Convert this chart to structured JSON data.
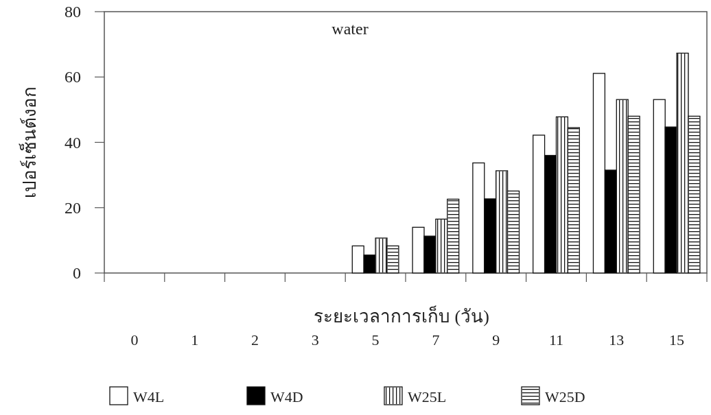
{
  "chart_data": {
    "type": "bar",
    "xlabel": "ระยะเวลาการเก็บ (วัน)",
    "ylabel": "เปอร์เซ็นต์งอก",
    "annotations": [
      "water"
    ],
    "categories": [
      "0",
      "1",
      "2",
      "3",
      "5",
      "7",
      "9",
      "11",
      "13",
      "15"
    ],
    "series": [
      {
        "name": "W4L",
        "color": "#ffffff",
        "values": [
          0,
          0,
          0,
          0,
          8.3,
          14.0,
          33.7,
          42.2,
          61.1,
          53.1
        ]
      },
      {
        "name": "W4D",
        "color": "#000000",
        "values": [
          0,
          0,
          0,
          0,
          5.5,
          11.3,
          22.7,
          36.0,
          31.5,
          44.7
        ]
      },
      {
        "name": "W25L",
        "color": "#ffffff",
        "values": [
          0,
          0,
          0,
          0,
          10.7,
          16.5,
          31.3,
          47.8,
          53.1,
          67.3
        ]
      },
      {
        "name": "W25D",
        "color": "#ffffff",
        "values": [
          0,
          0,
          0,
          0,
          8.3,
          22.6,
          25.1,
          44.5,
          48.0,
          48.0
        ]
      }
    ],
    "ylim": [
      0,
      80
    ],
    "yticks": [
      0,
      20,
      40,
      60,
      80
    ],
    "grid": false,
    "legend": "bottom"
  }
}
